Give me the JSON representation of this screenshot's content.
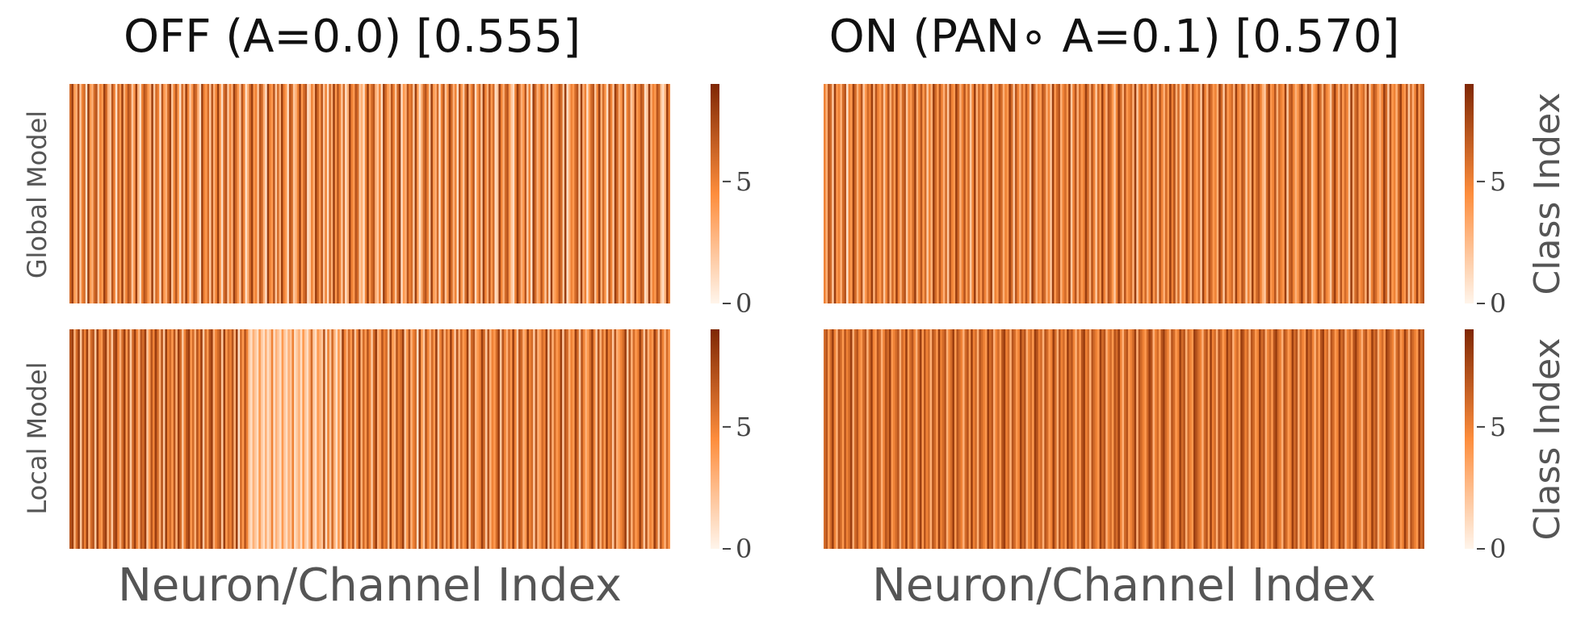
{
  "colormap": "Oranges",
  "colors": {
    "low": "#fff5eb",
    "mid": "#fd8d3c",
    "high": "#7f2704"
  },
  "titles": [
    "OFF (A=0.0) [0.555]",
    "ON (PAN∘ A=0.1) [0.570]"
  ],
  "row_labels": [
    "Global Model",
    "Local Model"
  ],
  "xlabel": "Neuron/Channel Index",
  "colorbar_label": "Class Index",
  "colorbar_ticks": [
    "0",
    "5"
  ],
  "chart_data": [
    {
      "type": "heatmap",
      "title": "OFF (A=0.0) [0.555]",
      "row_label": "Global Model",
      "xlabel": "",
      "colorbar_label": "",
      "vmin": 0,
      "vmax": 9,
      "colorbar_ticks": [
        0,
        5
      ],
      "values": [
        6,
        8,
        4,
        3,
        7,
        2,
        5,
        6,
        1,
        8,
        4,
        3,
        6,
        7,
        2,
        5,
        4,
        8,
        6,
        3,
        2,
        7,
        5,
        1,
        6,
        4,
        8,
        3,
        5,
        7,
        6,
        2,
        4,
        8,
        3,
        1,
        5,
        7,
        6,
        4,
        3,
        8,
        2,
        6,
        5,
        1,
        7,
        4,
        3,
        6,
        8,
        2,
        5,
        7,
        4,
        1,
        6,
        3,
        8,
        5,
        2,
        4,
        7,
        6,
        3,
        1,
        8,
        5,
        4,
        6,
        2,
        7,
        3,
        5,
        8,
        4,
        1,
        6,
        7,
        2,
        5,
        3,
        8,
        6,
        4,
        2,
        7,
        5,
        1,
        3,
        6,
        8,
        4,
        5,
        2,
        7,
        6,
        3,
        1,
        8,
        5,
        4,
        7,
        2,
        6,
        3,
        8,
        5,
        4,
        1,
        7,
        6,
        2,
        3,
        5,
        8,
        4,
        6,
        7,
        1,
        2,
        5,
        3,
        8,
        6,
        4,
        7,
        2,
        5,
        1,
        6,
        3,
        8,
        4,
        7,
        5,
        2,
        6,
        1,
        3,
        8,
        5,
        4,
        7,
        6,
        2,
        3,
        1,
        5,
        8,
        4,
        6,
        7,
        3,
        2,
        5,
        1,
        8,
        6,
        4,
        3,
        7,
        5,
        2,
        6,
        8,
        1,
        4,
        3,
        7,
        5,
        6,
        2,
        8,
        4,
        1,
        3,
        6,
        7,
        5,
        2,
        8,
        4,
        3,
        6,
        1,
        5,
        7,
        2,
        4,
        8,
        6,
        3,
        5,
        1,
        7,
        4,
        2,
        6,
        8,
        3,
        5,
        7,
        1,
        4,
        6,
        2,
        8,
        5,
        3,
        7,
        4,
        6,
        1,
        2,
        8,
        5,
        3,
        6,
        7,
        4,
        2,
        1,
        5,
        8,
        6,
        3,
        4,
        7,
        2,
        5,
        1,
        8,
        6,
        3,
        4,
        7,
        5,
        2,
        6,
        1,
        8,
        3,
        4,
        5,
        7,
        6,
        2,
        8,
        1,
        3,
        5,
        4,
        6,
        7,
        2,
        8,
        3,
        5,
        1,
        4,
        6,
        7,
        2,
        5,
        8,
        3,
        6,
        4,
        1,
        7,
        5,
        2,
        8,
        6,
        3,
        4,
        7,
        1,
        5,
        6,
        2,
        3,
        8,
        4,
        5,
        7,
        6,
        1,
        2,
        8,
        3,
        5,
        4,
        7,
        6,
        2,
        1,
        3,
        8,
        5
      ]
    },
    {
      "type": "heatmap",
      "title": "ON (PAN∘ A=0.1) [0.570]",
      "row_label": "Global Model",
      "xlabel": "",
      "colorbar_label": "Class Index",
      "vmin": 0,
      "vmax": 9,
      "colorbar_ticks": [
        0,
        5
      ],
      "values": [
        5,
        3,
        7,
        6,
        2,
        8,
        4,
        5,
        3,
        6,
        7,
        1,
        5,
        4,
        8,
        6,
        3,
        5,
        7,
        2,
        4,
        6,
        5,
        8,
        3,
        7,
        5,
        4,
        6,
        2,
        5,
        7,
        3,
        6,
        4,
        8,
        5,
        3,
        6,
        7,
        2,
        5,
        4,
        6,
        8,
        3,
        5,
        7,
        4,
        6,
        2,
        5,
        3,
        8,
        6,
        4,
        7,
        5,
        3,
        6,
        2,
        7,
        5,
        4,
        8,
        6,
        3,
        5,
        7,
        4,
        6,
        2,
        5,
        8,
        3,
        6,
        4,
        7,
        5,
        3,
        6,
        8,
        2,
        5,
        4,
        7,
        6,
        3,
        5,
        4,
        8,
        6,
        2,
        7,
        5,
        3,
        6,
        4,
        7,
        5,
        2,
        8,
        6,
        3,
        5,
        4,
        7,
        6,
        3,
        5,
        2,
        8,
        4,
        6,
        7,
        3,
        5,
        6,
        4,
        8,
        2,
        5,
        7,
        3,
        6,
        4,
        5,
        8,
        6,
        3,
        7,
        5,
        2,
        6,
        4,
        8,
        5,
        3,
        7,
        6,
        4,
        2,
        5,
        8,
        6,
        3,
        7,
        4,
        5,
        6,
        3,
        8,
        2,
        5,
        7,
        4,
        6,
        3,
        5,
        8,
        4,
        6,
        2,
        7,
        5,
        3,
        6,
        4,
        8,
        5,
        7,
        3,
        6,
        2,
        5,
        4,
        8,
        6,
        3,
        7,
        5,
        4,
        6,
        2,
        8,
        5,
        3,
        7,
        6,
        4,
        5,
        3,
        8,
        6,
        2,
        7,
        4,
        5,
        6,
        3,
        8,
        5,
        4,
        7,
        6,
        2,
        5,
        3,
        8,
        4,
        6,
        7,
        5,
        3,
        2,
        6,
        8,
        4,
        5,
        7,
        3,
        6,
        5,
        4,
        8,
        2,
        6,
        7,
        5,
        3,
        4,
        6,
        8,
        5,
        3,
        7,
        6,
        2,
        4,
        5,
        8,
        6,
        3,
        7,
        5,
        4,
        2,
        6,
        8,
        5,
        3,
        7,
        4,
        6,
        5,
        2,
        8,
        3,
        6,
        7,
        4,
        5,
        6,
        3,
        8,
        2,
        5,
        7,
        6,
        4,
        3,
        5,
        8,
        6,
        2,
        7,
        4,
        5,
        3,
        6,
        8,
        5,
        4,
        7,
        2,
        6,
        3,
        5,
        8,
        4,
        6,
        7
      ]
    },
    {
      "type": "heatmap",
      "title": "",
      "row_label": "Local Model",
      "xlabel": "Neuron/Channel Index",
      "colorbar_label": "",
      "vmin": 0,
      "vmax": 9,
      "colorbar_ticks": [
        0,
        5
      ],
      "values": [
        7,
        8,
        3,
        6,
        8,
        2,
        7,
        5,
        8,
        3,
        6,
        7,
        2,
        8,
        5,
        4,
        7,
        8,
        3,
        6,
        2,
        7,
        8,
        5,
        3,
        6,
        8,
        4,
        7,
        2,
        6,
        8,
        5,
        3,
        7,
        6,
        8,
        2,
        4,
        7,
        5,
        8,
        6,
        3,
        7,
        2,
        8,
        5,
        6,
        4,
        7,
        3,
        8,
        6,
        2,
        5,
        7,
        8,
        4,
        6,
        3,
        7,
        5,
        8,
        2,
        6,
        4,
        7,
        8,
        3,
        5,
        6,
        7,
        2,
        8,
        4,
        6,
        5,
        7,
        3,
        8,
        1,
        6,
        4,
        7,
        5,
        2,
        1,
        3,
        2,
        1,
        4,
        2,
        1,
        3,
        1,
        2,
        5,
        1,
        3,
        2,
        1,
        4,
        2,
        1,
        3,
        2,
        5,
        1,
        2,
        3,
        1,
        4,
        2,
        1,
        3,
        6,
        2,
        1,
        4,
        3,
        2,
        7,
        1,
        5,
        2,
        6,
        3,
        1,
        4,
        2,
        8,
        5,
        3,
        6,
        4,
        7,
        2,
        5,
        8,
        3,
        6,
        4,
        7,
        5,
        2,
        6,
        8,
        3,
        4,
        7,
        5,
        6,
        2,
        8,
        4,
        3,
        7,
        5,
        6,
        8,
        2,
        4,
        7,
        3,
        5,
        6,
        1,
        8,
        4,
        2,
        7,
        5,
        3,
        6,
        4,
        8,
        2,
        5,
        7,
        3,
        6,
        4,
        8,
        5,
        2,
        7,
        3,
        6,
        4,
        5,
        8,
        2,
        6,
        7,
        3,
        4,
        5,
        8,
        6,
        2,
        7,
        3,
        5,
        4,
        6,
        8,
        2,
        7,
        5,
        3,
        6,
        4,
        8,
        5,
        2,
        7,
        6,
        3,
        4,
        8,
        5,
        6,
        2,
        7,
        3,
        4,
        6,
        5,
        8,
        2,
        7,
        3,
        6,
        4,
        5,
        8,
        2,
        7,
        6,
        3,
        5,
        4,
        8,
        6,
        2,
        7,
        5,
        3,
        4,
        6,
        8,
        5,
        2,
        7,
        3,
        6,
        4,
        8,
        5,
        6,
        2,
        7,
        3,
        4,
        5,
        6,
        8,
        2,
        7,
        3,
        6,
        4,
        5,
        8,
        6,
        2,
        7,
        3,
        5,
        4,
        8,
        6,
        2,
        7,
        5,
        3,
        6,
        4
      ]
    },
    {
      "type": "heatmap",
      "title": "",
      "row_label": "Local Model",
      "xlabel": "Neuron/Channel Index",
      "colorbar_label": "Class Index",
      "vmin": 0,
      "vmax": 9,
      "colorbar_ticks": [
        0,
        5
      ],
      "values": [
        6,
        7,
        4,
        6,
        8,
        5,
        3,
        7,
        6,
        4,
        7,
        5,
        6,
        8,
        3,
        6,
        7,
        5,
        4,
        6,
        7,
        3,
        6,
        8,
        5,
        4,
        7,
        6,
        3,
        5,
        7,
        6,
        8,
        4,
        5,
        6,
        7,
        3,
        6,
        5,
        8,
        4,
        6,
        7,
        5,
        3,
        6,
        8,
        4,
        7,
        5,
        6,
        3,
        7,
        6,
        4,
        8,
        5,
        6,
        7,
        3,
        5,
        6,
        8,
        4,
        7,
        6,
        5,
        3,
        6,
        7,
        4,
        8,
        5,
        6,
        3,
        7,
        6,
        5,
        4,
        8,
        6,
        7,
        3,
        5,
        6,
        4,
        7,
        8,
        5,
        6,
        3,
        7,
        6,
        4,
        5,
        8,
        6,
        7,
        3,
        5,
        6,
        4,
        8,
        7,
        5,
        6,
        3,
        7,
        6,
        4,
        5,
        8,
        6,
        3,
        7,
        5,
        6,
        4,
        8,
        6,
        7,
        5,
        3,
        6,
        4,
        7,
        8,
        5,
        6,
        3,
        7,
        6,
        5,
        4,
        8,
        6,
        7,
        3,
        5,
        6,
        4,
        7,
        6,
        8,
        5,
        3,
        6,
        7,
        4,
        5,
        6,
        8,
        3,
        7,
        6,
        5,
        4,
        6,
        8,
        7,
        3,
        5,
        6,
        4,
        7,
        8,
        6,
        5,
        3,
        7,
        6,
        4,
        5,
        8,
        6,
        7,
        3,
        6,
        5,
        4,
        8,
        7,
        6,
        5,
        3,
        6,
        7,
        4,
        8,
        5,
        6,
        3,
        7,
        6,
        4,
        5,
        8,
        6,
        7,
        3,
        5,
        6,
        4,
        8,
        7,
        5,
        6,
        3,
        7,
        6,
        4,
        5,
        8,
        6,
        7,
        3,
        5,
        6,
        4,
        7,
        8,
        6,
        5,
        3,
        7,
        6,
        4,
        5,
        8,
        6,
        7,
        3,
        6,
        5,
        4,
        8,
        6,
        7,
        5,
        3,
        6,
        4,
        7,
        8,
        5,
        6,
        3,
        7,
        6,
        4,
        5,
        8,
        6,
        7,
        3,
        5,
        6,
        4,
        7,
        8,
        6,
        5,
        3,
        6,
        7,
        4,
        5,
        8,
        6,
        7,
        3,
        5,
        6,
        4,
        8,
        7,
        6,
        5,
        3,
        6,
        7,
        4,
        5,
        8,
        6,
        3,
        7,
        6,
        5,
        4,
        8,
        6,
        7
      ]
    }
  ]
}
